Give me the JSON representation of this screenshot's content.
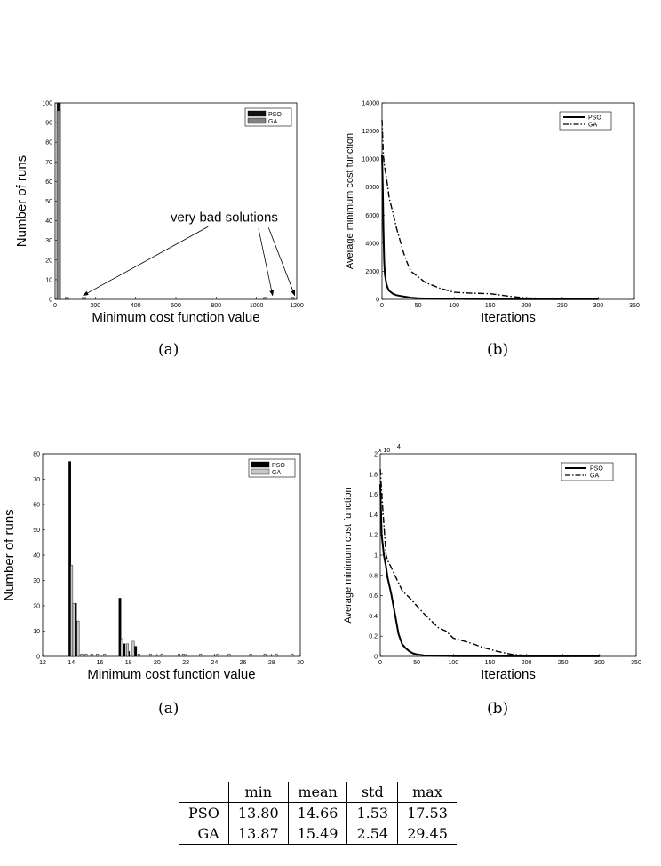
{
  "captions": [
    "(a)",
    "(b)",
    "(a)",
    "(b)"
  ],
  "chart_data": [
    {
      "type": "bar",
      "title": "",
      "xlabel": "Minimum cost function value",
      "ylabel": "Number of runs",
      "xlim": [
        0,
        1200
      ],
      "ylim": [
        0,
        100
      ],
      "xticks": [
        "0",
        "200",
        "400",
        "600",
        "800",
        "1000",
        "1200"
      ],
      "yticks": [
        "0",
        "10",
        "20",
        "30",
        "40",
        "50",
        "60",
        "70",
        "80",
        "90",
        "100"
      ],
      "legend": [
        "PSO",
        "GA"
      ],
      "legend_position": "top-right",
      "annotation": "very bad solutions",
      "series": [
        {
          "name": "PSO",
          "color": "#111111",
          "points": [
            [
              18,
              100
            ]
          ]
        },
        {
          "name": "GA",
          "color": "#808080",
          "points": [
            [
              14,
              96
            ],
            [
              55,
              1
            ],
            [
              140,
              1
            ],
            [
              1040,
              1
            ],
            [
              1175,
              1
            ]
          ]
        }
      ]
    },
    {
      "type": "line",
      "title": "",
      "xlabel": "Iterations",
      "ylabel": "Average minimum cost function",
      "xlim": [
        0,
        350
      ],
      "ylim": [
        0,
        14000
      ],
      "xticks": [
        "0",
        "50",
        "100",
        "150",
        "200",
        "250",
        "300",
        "350"
      ],
      "yticks": [
        "0",
        "2000",
        "4000",
        "6000",
        "8000",
        "10000",
        "12000",
        "14000"
      ],
      "legend": [
        "PSO",
        "GA"
      ],
      "legend_position": "top-right",
      "series": [
        {
          "name": "PSO",
          "style": "solid",
          "x": [
            0,
            1,
            2,
            3,
            4,
            6,
            8,
            10,
            15,
            20,
            30,
            40,
            50,
            70,
            100,
            150,
            200,
            300
          ],
          "y": [
            10300,
            8200,
            5000,
            2800,
            1800,
            1100,
            800,
            600,
            400,
            300,
            200,
            120,
            80,
            50,
            30,
            20,
            15,
            10
          ]
        },
        {
          "name": "GA",
          "style": "dashdot",
          "x": [
            0,
            1,
            2,
            3,
            5,
            8,
            10,
            15,
            20,
            25,
            30,
            35,
            40,
            50,
            60,
            70,
            80,
            100,
            120,
            150,
            180,
            200,
            250,
            300
          ],
          "y": [
            12800,
            11500,
            10200,
            9700,
            9000,
            8000,
            7200,
            6200,
            5100,
            4200,
            3300,
            2600,
            2000,
            1600,
            1200,
            1000,
            800,
            500,
            450,
            400,
            200,
            100,
            50,
            30
          ]
        }
      ]
    },
    {
      "type": "bar",
      "title": "",
      "xlabel": "Minimum cost function value",
      "ylabel": "Number of runs",
      "xlim": [
        12,
        30
      ],
      "ylim": [
        0,
        80
      ],
      "xticks": [
        "12",
        "14",
        "16",
        "18",
        "20",
        "22",
        "24",
        "26",
        "28",
        "30"
      ],
      "yticks": [
        "0",
        "10",
        "20",
        "30",
        "40",
        "50",
        "60",
        "70",
        "80"
      ],
      "legend": [
        "PSO",
        "GA"
      ],
      "legend_position": "top-right",
      "series": [
        {
          "name": "PSO",
          "color": "#000000",
          "points": [
            [
              13.9,
              77
            ],
            [
              14.05,
              4
            ],
            [
              14.3,
              21
            ],
            [
              17.4,
              23
            ],
            [
              17.7,
              5
            ],
            [
              18.0,
              2
            ],
            [
              18.5,
              4
            ]
          ]
        },
        {
          "name": "GA",
          "color": "#c8c8c8",
          "points": [
            [
              14.0,
              36
            ],
            [
              14.15,
              21
            ],
            [
              14.45,
              14
            ],
            [
              14.7,
              1
            ],
            [
              15.0,
              1
            ],
            [
              15.4,
              1
            ],
            [
              15.8,
              1
            ],
            [
              16.3,
              1
            ],
            [
              17.5,
              7
            ],
            [
              17.9,
              5
            ],
            [
              18.3,
              6
            ],
            [
              18.7,
              1
            ],
            [
              19.5,
              1
            ],
            [
              20.3,
              1
            ],
            [
              21.5,
              1
            ],
            [
              21.8,
              1
            ],
            [
              23.0,
              1
            ],
            [
              24.2,
              1
            ],
            [
              25.0,
              1
            ],
            [
              26.5,
              1
            ],
            [
              27.5,
              1
            ],
            [
              28.3,
              1
            ],
            [
              29.4,
              1
            ]
          ]
        }
      ]
    },
    {
      "type": "line",
      "title": "",
      "xlabel": "Iterations",
      "ylabel": "Average minimum cost function",
      "xlim": [
        0,
        350
      ],
      "ylim": [
        0,
        2
      ],
      "y_multiplier": "x 10^4",
      "y_multiplier_text": "x 10",
      "y_multiplier_exp": "4",
      "xticks": [
        "0",
        "50",
        "100",
        "150",
        "200",
        "250",
        "300",
        "350"
      ],
      "yticks": [
        "0",
        "0.2",
        "0.4",
        "0.6",
        "0.8",
        "1",
        "1.2",
        "1.4",
        "1.6",
        "1.8",
        "2"
      ],
      "legend": [
        "PSO",
        "GA"
      ],
      "legend_position": "top-right",
      "series": [
        {
          "name": "PSO",
          "style": "solid",
          "x": [
            0,
            2,
            5,
            8,
            10,
            15,
            20,
            25,
            30,
            35,
            40,
            45,
            50,
            60,
            80,
            100,
            150,
            200,
            300
          ],
          "y": [
            1.7,
            1.2,
            1.0,
            0.88,
            0.78,
            0.62,
            0.42,
            0.22,
            0.12,
            0.08,
            0.05,
            0.03,
            0.02,
            0.01,
            0.005,
            0.003,
            0.002,
            0.001,
            0.0005
          ]
        },
        {
          "name": "GA",
          "style": "dashdot",
          "x": [
            0,
            3,
            8,
            10,
            15,
            20,
            30,
            40,
            50,
            60,
            70,
            80,
            90,
            100,
            120,
            140,
            160,
            180,
            200,
            250,
            300
          ],
          "y": [
            1.85,
            1.5,
            1.0,
            0.95,
            0.88,
            0.8,
            0.65,
            0.58,
            0.5,
            0.42,
            0.35,
            0.28,
            0.25,
            0.18,
            0.14,
            0.09,
            0.05,
            0.02,
            0.01,
            0.005,
            0.002
          ]
        }
      ]
    }
  ],
  "table": {
    "headers": [
      "",
      "min",
      "mean",
      "std",
      "max"
    ],
    "rows": [
      [
        "PSO",
        "13.80",
        "14.66",
        "1.53",
        "17.53"
      ],
      [
        "GA",
        "13.87",
        "15.49",
        "2.54",
        "29.45"
      ]
    ]
  }
}
